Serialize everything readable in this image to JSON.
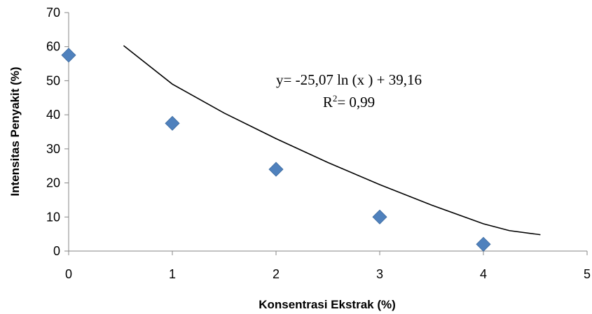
{
  "chart_data": {
    "type": "scatter",
    "xlabel": "Konsentrasi Ekstrak (%)",
    "ylabel": "Intensitas Penyakit (%)",
    "xlim": [
      0,
      5
    ],
    "ylim": [
      0,
      70
    ],
    "xticks": [
      "0",
      "1",
      "2",
      "3",
      "4",
      "5"
    ],
    "yticks": [
      "0",
      "10",
      "20",
      "30",
      "40",
      "50",
      "60",
      "70"
    ],
    "grid": false,
    "legend": "none",
    "marker": "diamond",
    "marker_color": "#4f81bd",
    "series": [
      {
        "x": [
          0,
          1,
          2,
          3,
          4
        ],
        "values": [
          57.5,
          37.5,
          24,
          10,
          2
        ]
      }
    ],
    "trendline": {
      "kind": "logarithmic",
      "color": "#000000",
      "points": [
        {
          "x": 0.53,
          "y": 60.3
        },
        {
          "x": 1.0,
          "y": 49.0
        },
        {
          "x": 1.5,
          "y": 40.5
        },
        {
          "x": 2.0,
          "y": 33.0
        },
        {
          "x": 2.5,
          "y": 26.0
        },
        {
          "x": 3.0,
          "y": 19.5
        },
        {
          "x": 3.5,
          "y": 13.5
        },
        {
          "x": 4.0,
          "y": 8.0
        },
        {
          "x": 4.25,
          "y": 6.0
        },
        {
          "x": 4.55,
          "y": 4.8
        }
      ]
    },
    "annotations": {
      "equation": "y= -25,07 ln (x ) + 39,16",
      "r2_label": "R",
      "r2_sup": "2",
      "r2_value": "= 0,99"
    }
  }
}
